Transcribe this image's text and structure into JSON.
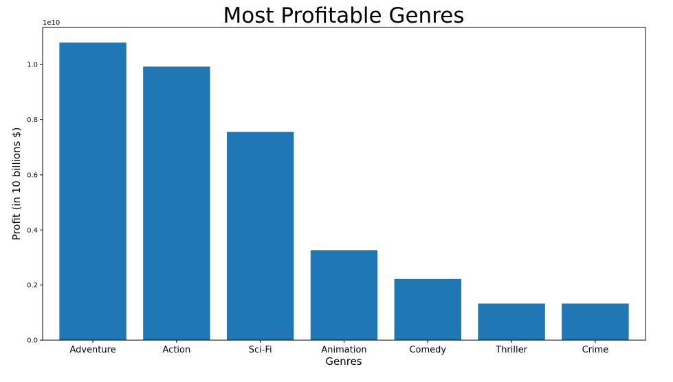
{
  "chart_data": {
    "type": "bar",
    "title": "Most Profitable Genres",
    "xlabel": "Genres",
    "ylabel": "Profit (in 10 billions $)",
    "y_offset_label": "1e10",
    "categories": [
      "Adventure",
      "Action",
      "Sci-Fi",
      "Animation",
      "Comedy",
      "Thriller",
      "Crime"
    ],
    "values": [
      1.08,
      0.993,
      0.756,
      0.326,
      0.222,
      0.133,
      0.133
    ],
    "ylim": [
      0,
      1.135
    ],
    "yticks": [
      0.0,
      0.2,
      0.4,
      0.6,
      0.8,
      1.0
    ],
    "ytick_labels": [
      "0.0",
      "0.2",
      "0.4",
      "0.6",
      "0.8",
      "1.0"
    ],
    "grid": false,
    "bar_color": "#1f77b4"
  }
}
